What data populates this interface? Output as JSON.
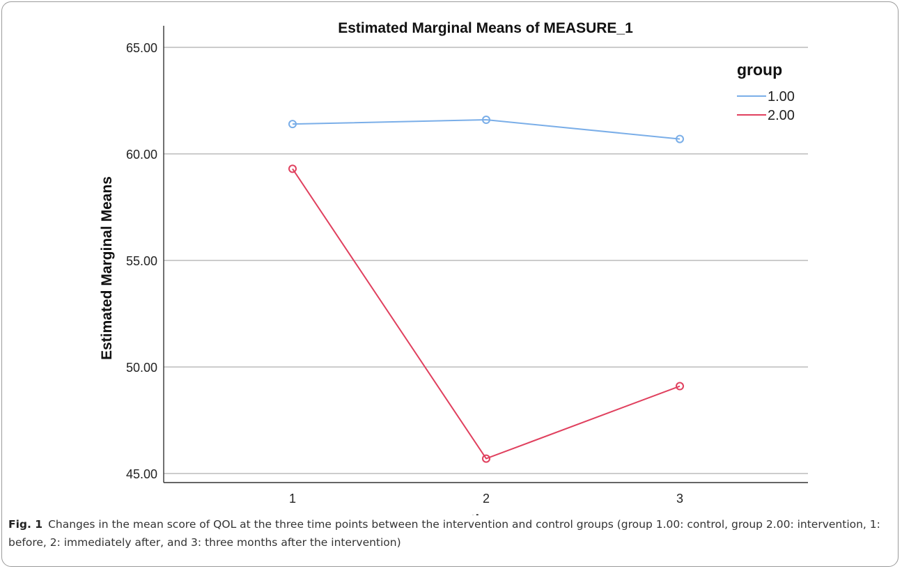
{
  "chart_data": {
    "type": "line",
    "title": "Estimated Marginal Means of MEASURE_1",
    "xlabel": "time",
    "ylabel": "Estimated Marginal Means",
    "categories": [
      "1",
      "2",
      "3"
    ],
    "y_ticks": [
      "45.00",
      "50.00",
      "55.00",
      "60.00",
      "65.00"
    ],
    "ylim": [
      45,
      65
    ],
    "grid": true,
    "legend_title": "group",
    "legend_position": "top-right",
    "series": [
      {
        "name": "1.00",
        "color": "#7aaee8",
        "values": [
          61.4,
          61.6,
          60.7
        ]
      },
      {
        "name": "2.00",
        "color": "#e0405e",
        "values": [
          59.3,
          45.7,
          49.1
        ]
      }
    ]
  },
  "caption": {
    "label": "Fig. 1",
    "text": "Changes in the mean score of QOL at the three time points between the intervention and control groups (group 1.00: control, group 2.00: intervention, 1: before, 2: immediately after, and 3: three months after the intervention)"
  }
}
